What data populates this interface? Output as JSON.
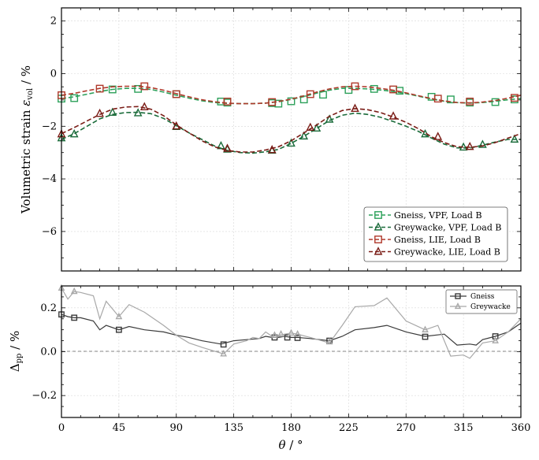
{
  "chart_data": [
    {
      "type": "line",
      "ylabel": "Volumetric strain ε_vol / %",
      "ylabel_main": "Volumetric strain ",
      "ylabel_sym": "ε",
      "ylabel_sub": "vol",
      "ylabel_unit": " / %",
      "xlim": [
        0,
        360
      ],
      "ylim": [
        -7.5,
        2.5
      ],
      "yticks": [
        2,
        0,
        -2,
        -4,
        -6
      ],
      "ytick_labels": [
        "2",
        "0",
        "−2",
        "−4",
        "−6"
      ],
      "grid": true,
      "legend_position": "lower-right",
      "series": [
        {
          "name": "Gneiss, VPF, Load B",
          "color": "#2ca05a",
          "marker": "square",
          "x": [
            0,
            10,
            20,
            30,
            40,
            50,
            60,
            70,
            80,
            90,
            100,
            110,
            120,
            130,
            140,
            150,
            160,
            170,
            180,
            190,
            200,
            210,
            220,
            230,
            240,
            250,
            260,
            270,
            280,
            290,
            300,
            310,
            320,
            330,
            340,
            350,
            360
          ],
          "y": [
            -0.95,
            -0.88,
            -0.78,
            -0.68,
            -0.6,
            -0.56,
            -0.56,
            -0.6,
            -0.7,
            -0.82,
            -0.93,
            -1.03,
            -1.1,
            -1.13,
            -1.14,
            -1.14,
            -1.12,
            -1.07,
            -0.98,
            -0.87,
            -0.74,
            -0.63,
            -0.56,
            -0.56,
            -0.58,
            -0.62,
            -0.68,
            -0.76,
            -0.86,
            -0.96,
            -1.05,
            -1.1,
            -1.12,
            -1.1,
            -1.05,
            -0.99,
            -0.95
          ],
          "markers_x": [
            0,
            10,
            40,
            60,
            90,
            125,
            130,
            165,
            170,
            180,
            190,
            205,
            225,
            245,
            265,
            290,
            305,
            320,
            340,
            355
          ],
          "markers_y": [
            -0.95,
            -0.93,
            -0.6,
            -0.58,
            -0.78,
            -1.06,
            -1.1,
            -1.12,
            -1.14,
            -1.05,
            -0.98,
            -0.8,
            -0.62,
            -0.58,
            -0.65,
            -0.88,
            -0.98,
            -1.1,
            -1.08,
            -0.98
          ]
        },
        {
          "name": "Greywacke, VPF, Load B",
          "color": "#1a6b3a",
          "marker": "triangle",
          "x": [
            0,
            10,
            20,
            30,
            40,
            50,
            60,
            70,
            80,
            90,
            100,
            110,
            120,
            130,
            140,
            150,
            160,
            170,
            180,
            190,
            200,
            210,
            220,
            230,
            240,
            250,
            260,
            270,
            280,
            290,
            300,
            310,
            320,
            330,
            340,
            350,
            360
          ],
          "y": [
            -2.5,
            -2.28,
            -2.0,
            -1.72,
            -1.55,
            -1.48,
            -1.47,
            -1.52,
            -1.7,
            -1.98,
            -2.25,
            -2.5,
            -2.75,
            -2.92,
            -3.0,
            -3.02,
            -2.97,
            -2.88,
            -2.65,
            -2.38,
            -2.08,
            -1.78,
            -1.58,
            -1.5,
            -1.55,
            -1.66,
            -1.82,
            -2.0,
            -2.2,
            -2.45,
            -2.68,
            -2.82,
            -2.83,
            -2.72,
            -2.6,
            -2.5,
            -2.5
          ],
          "markers_x": [
            0,
            10,
            40,
            60,
            90,
            125,
            130,
            165,
            180,
            190,
            200,
            210,
            285,
            315,
            330,
            355
          ],
          "markers_y": [
            -2.45,
            -2.3,
            -1.48,
            -1.5,
            -2.02,
            -2.75,
            -2.88,
            -2.92,
            -2.65,
            -2.38,
            -2.08,
            -1.74,
            -2.3,
            -2.8,
            -2.7,
            -2.5
          ]
        },
        {
          "name": "Gneiss, LIE, Load B",
          "color": "#b0392b",
          "marker": "square",
          "x": [
            0,
            10,
            20,
            30,
            40,
            50,
            60,
            70,
            80,
            90,
            100,
            110,
            120,
            130,
            140,
            150,
            160,
            170,
            180,
            190,
            200,
            210,
            220,
            230,
            240,
            250,
            260,
            270,
            280,
            290,
            300,
            310,
            320,
            330,
            340,
            350,
            360
          ],
          "y": [
            -0.82,
            -0.75,
            -0.65,
            -0.56,
            -0.5,
            -0.48,
            -0.48,
            -0.53,
            -0.63,
            -0.76,
            -0.88,
            -0.99,
            -1.07,
            -1.12,
            -1.14,
            -1.14,
            -1.12,
            -1.06,
            -0.97,
            -0.84,
            -0.7,
            -0.58,
            -0.5,
            -0.48,
            -0.5,
            -0.56,
            -0.63,
            -0.73,
            -0.84,
            -0.95,
            -1.04,
            -1.1,
            -1.11,
            -1.08,
            -1.02,
            -0.93,
            -0.82
          ],
          "markers_x": [
            0,
            30,
            65,
            90,
            130,
            165,
            195,
            230,
            260,
            295,
            320,
            355
          ],
          "markers_y": [
            -0.82,
            -0.57,
            -0.48,
            -0.78,
            -1.06,
            -1.08,
            -0.78,
            -0.48,
            -0.6,
            -0.95,
            -1.06,
            -0.92
          ]
        },
        {
          "name": "Greywacke, LIE, Load B",
          "color": "#7a1c16",
          "marker": "triangle",
          "x": [
            0,
            10,
            20,
            30,
            40,
            50,
            60,
            70,
            80,
            90,
            100,
            110,
            120,
            130,
            140,
            150,
            160,
            170,
            180,
            190,
            200,
            210,
            220,
            230,
            240,
            250,
            260,
            270,
            280,
            290,
            300,
            310,
            320,
            330,
            340,
            350,
            360
          ],
          "y": [
            -2.28,
            -2.05,
            -1.8,
            -1.55,
            -1.35,
            -1.27,
            -1.25,
            -1.35,
            -1.6,
            -1.95,
            -2.25,
            -2.55,
            -2.78,
            -2.92,
            -2.98,
            -2.98,
            -2.9,
            -2.78,
            -2.55,
            -2.25,
            -1.95,
            -1.62,
            -1.4,
            -1.33,
            -1.37,
            -1.48,
            -1.65,
            -1.85,
            -2.1,
            -2.4,
            -2.62,
            -2.78,
            -2.8,
            -2.75,
            -2.62,
            -2.45,
            -2.28
          ],
          "markers_x": [
            0,
            30,
            65,
            90,
            130,
            165,
            195,
            230,
            260,
            295,
            320
          ],
          "markers_y": [
            -2.3,
            -1.52,
            -1.27,
            -2.0,
            -2.85,
            -2.9,
            -2.05,
            -1.33,
            -1.62,
            -2.4,
            -2.78
          ]
        }
      ]
    },
    {
      "type": "line",
      "xlabel": "θ / °",
      "xlabel_sym": "θ",
      "xlabel_unit": " / °",
      "ylabel": "Δpp / %",
      "ylabel_sym": "Δ",
      "ylabel_sub": "pp",
      "ylabel_unit": " / %",
      "xlim": [
        0,
        360
      ],
      "ylim": [
        -0.3,
        0.3
      ],
      "xticks": [
        0,
        45,
        90,
        135,
        180,
        225,
        270,
        315,
        360
      ],
      "xtick_labels": [
        "0",
        "45",
        "90",
        "135",
        "180",
        "225",
        "270",
        "315",
        "360"
      ],
      "yticks": [
        0.2,
        0.0,
        -0.2
      ],
      "ytick_labels": [
        "0.2",
        "0.0",
        "−0.2"
      ],
      "grid": true,
      "legend_position": "top-right",
      "series": [
        {
          "name": "Gneiss",
          "color": "#3a3a3a",
          "marker": "square",
          "x": [
            0,
            5,
            10,
            15,
            25,
            30,
            35,
            45,
            53,
            65,
            80,
            90,
            100,
            110,
            125,
            135,
            145,
            155,
            160,
            165,
            170,
            175,
            180,
            185,
            195,
            210,
            220,
            230,
            245,
            255,
            270,
            285,
            300,
            310,
            320,
            325,
            330,
            340,
            350,
            360
          ],
          "y": [
            0.17,
            0.16,
            0.155,
            0.155,
            0.14,
            0.1,
            0.12,
            0.1,
            0.115,
            0.1,
            0.09,
            0.075,
            0.065,
            0.05,
            0.035,
            0.05,
            0.055,
            0.06,
            0.07,
            0.065,
            0.065,
            0.07,
            0.065,
            0.065,
            0.06,
            0.05,
            0.07,
            0.1,
            0.11,
            0.12,
            0.09,
            0.07,
            0.08,
            0.03,
            0.035,
            0.03,
            0.055,
            0.07,
            0.09,
            0.13
          ],
          "markers_x": [
            0,
            10,
            45,
            127,
            167,
            177,
            185,
            210,
            285,
            340
          ],
          "markers_y": [
            0.17,
            0.155,
            0.1,
            0.033,
            0.065,
            0.065,
            0.063,
            0.05,
            0.068,
            0.07
          ]
        },
        {
          "name": "Greywacke",
          "color": "#a8a8a8",
          "marker": "triangle",
          "x": [
            0,
            5,
            10,
            15,
            25,
            30,
            35,
            45,
            53,
            65,
            80,
            90,
            100,
            110,
            127,
            135,
            145,
            150,
            155,
            160,
            165,
            170,
            175,
            180,
            185,
            195,
            210,
            220,
            230,
            245,
            255,
            270,
            285,
            295,
            305,
            315,
            320,
            330,
            340,
            350,
            360
          ],
          "y": [
            0.29,
            0.24,
            0.275,
            0.27,
            0.255,
            0.15,
            0.23,
            0.16,
            0.215,
            0.18,
            0.12,
            0.075,
            0.04,
            0.02,
            -0.01,
            0.035,
            0.05,
            0.065,
            0.06,
            0.09,
            0.07,
            0.075,
            0.08,
            0.085,
            0.08,
            0.065,
            0.04,
            0.12,
            0.205,
            0.21,
            0.245,
            0.14,
            0.1,
            0.12,
            -0.02,
            -0.015,
            -0.03,
            0.04,
            0.05,
            0.09,
            0.15
          ],
          "markers_x": [
            0,
            10,
            45,
            127,
            167,
            172,
            180,
            185,
            210,
            285,
            340
          ],
          "markers_y": [
            0.29,
            0.275,
            0.16,
            -0.01,
            0.075,
            0.08,
            0.085,
            0.08,
            0.045,
            0.1,
            0.05
          ]
        }
      ]
    }
  ]
}
